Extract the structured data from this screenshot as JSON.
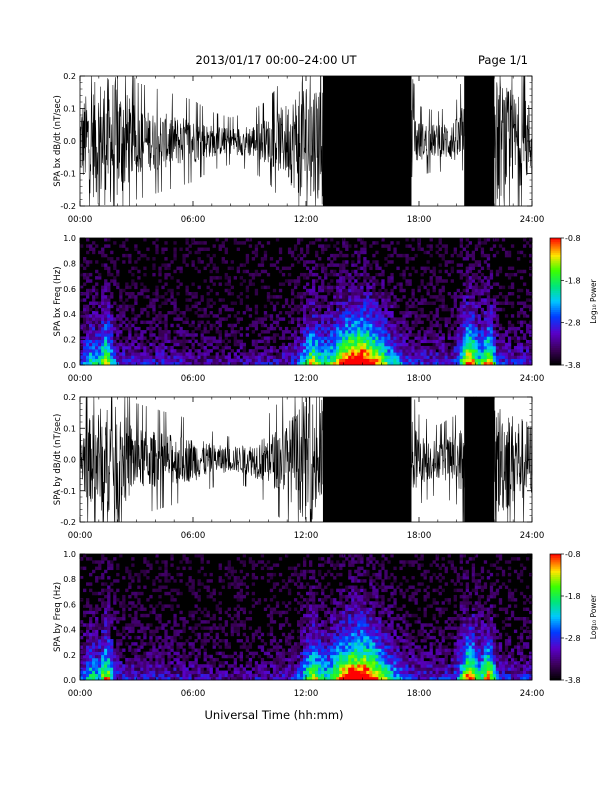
{
  "header": {
    "title": "2013/01/17  00:00–24:00 UT",
    "page": "Page 1/1"
  },
  "x_axis": {
    "label": "Universal Time (hh:mm)",
    "ticks": [
      "00:00",
      "06:00",
      "12:00",
      "18:00",
      "24:00"
    ],
    "range_hours": [
      0,
      24
    ]
  },
  "colorbar": {
    "label": "Log₁₀ Power",
    "ticks": [
      "-0.8",
      "-1.8",
      "-2.8",
      "-3.8"
    ],
    "range": [
      -3.8,
      -0.8
    ]
  },
  "chart_data": [
    {
      "type": "line",
      "ylabel": "SPA bx dB/dt (nT/sec)",
      "xlim": [
        0,
        24
      ],
      "ylim": [
        -0.2,
        0.2
      ],
      "yticks": [
        "0.2",
        "0.1",
        "0.0",
        "-0.1",
        "-0.2"
      ],
      "envelope_x": [
        0,
        1,
        2,
        3,
        4,
        5,
        6,
        7,
        8,
        9,
        10,
        11,
        12,
        13,
        14,
        15,
        16,
        17,
        18,
        19,
        20,
        21,
        22,
        23,
        24
      ],
      "envelope_amplitude": [
        0.12,
        0.2,
        0.2,
        0.1,
        0.09,
        0.08,
        0.07,
        0.05,
        0.04,
        0.05,
        0.07,
        0.12,
        0.2,
        0.2,
        0.2,
        0.2,
        0.2,
        0.2,
        0.06,
        0.05,
        0.07,
        0.2,
        0.2,
        0.15,
        0.12
      ]
    },
    {
      "type": "heatmap",
      "ylabel": "SPA bx Freq (Hz)",
      "xlim": [
        0,
        24
      ],
      "ylim": [
        0,
        1.0
      ],
      "yticks": [
        "1.0",
        "0.8",
        "0.6",
        "0.4",
        "0.2",
        "0.0"
      ],
      "value_range": [
        -3.8,
        -0.8
      ]
    },
    {
      "type": "line",
      "ylabel": "SPA by dB/dt (nT/sec)",
      "xlim": [
        0,
        24
      ],
      "ylim": [
        -0.2,
        0.2
      ],
      "yticks": [
        "0.2",
        "0.1",
        "0.0",
        "-0.1",
        "-0.2"
      ],
      "envelope_x": [
        0,
        1,
        2,
        3,
        4,
        5,
        6,
        7,
        8,
        9,
        10,
        11,
        12,
        13,
        14,
        15,
        16,
        17,
        18,
        19,
        20,
        21,
        22,
        23,
        24
      ],
      "envelope_amplitude": [
        0.1,
        0.17,
        0.17,
        0.1,
        0.09,
        0.08,
        0.07,
        0.05,
        0.04,
        0.05,
        0.08,
        0.12,
        0.2,
        0.2,
        0.2,
        0.2,
        0.2,
        0.2,
        0.08,
        0.06,
        0.08,
        0.2,
        0.2,
        0.15,
        0.12
      ]
    },
    {
      "type": "heatmap",
      "ylabel": "SPA by Freq (Hz)",
      "xlim": [
        0,
        24
      ],
      "ylim": [
        0,
        1.0
      ],
      "yticks": [
        "1.0",
        "0.8",
        "0.6",
        "0.4",
        "0.2",
        "0.0"
      ],
      "value_range": [
        -3.8,
        -0.8
      ]
    }
  ]
}
